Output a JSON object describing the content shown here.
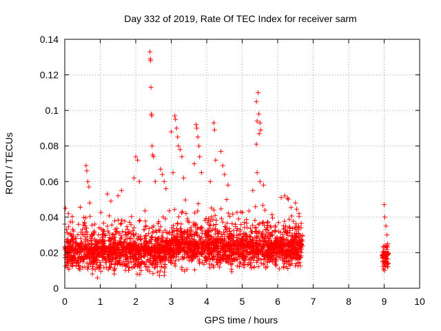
{
  "chart_data": {
    "type": "scatter",
    "title": "Day 332 of 2019, Rate Of TEC Index for receiver sarm",
    "xlabel": "GPS time / hours",
    "ylabel": "ROTI / TECUs",
    "xlim": [
      0,
      10
    ],
    "ylim": [
      0,
      0.14
    ],
    "xticks": [
      "0",
      "1",
      "2",
      "3",
      "4",
      "5",
      "6",
      "7",
      "8",
      "9",
      "10"
    ],
    "yticks": [
      "0",
      "0.02",
      "0.04",
      "0.06",
      "0.08",
      "0.1",
      "0.12",
      "0.14"
    ],
    "grid": true,
    "marker": "+",
    "color": "#ff0000",
    "series": [
      {
        "name": "ROTI",
        "points": [
          [
            0.02,
            0.045
          ],
          [
            0.03,
            0.021
          ],
          [
            0.05,
            0.033
          ],
          [
            0.08,
            0.015
          ],
          [
            0.1,
            0.042
          ],
          [
            0.6,
            0.069
          ],
          [
            0.62,
            0.066
          ],
          [
            0.65,
            0.06
          ],
          [
            0.68,
            0.057
          ],
          [
            0.7,
            0.048
          ],
          [
            1.2,
            0.053
          ],
          [
            1.3,
            0.049
          ],
          [
            1.5,
            0.052
          ],
          [
            1.6,
            0.055
          ],
          [
            1.95,
            0.062
          ],
          [
            2.0,
            0.074
          ],
          [
            2.05,
            0.072
          ],
          [
            2.1,
            0.06
          ],
          [
            2.4,
            0.133
          ],
          [
            2.41,
            0.129
          ],
          [
            2.42,
            0.128
          ],
          [
            2.43,
            0.113
          ],
          [
            2.44,
            0.098
          ],
          [
            2.45,
            0.097
          ],
          [
            2.46,
            0.08
          ],
          [
            2.48,
            0.075
          ],
          [
            2.5,
            0.074
          ],
          [
            2.55,
            0.06
          ],
          [
            2.7,
            0.067
          ],
          [
            2.75,
            0.064
          ],
          [
            2.8,
            0.06
          ],
          [
            2.85,
            0.056
          ],
          [
            3.1,
            0.097
          ],
          [
            3.12,
            0.095
          ],
          [
            3.15,
            0.09
          ],
          [
            3.18,
            0.085
          ],
          [
            3.2,
            0.08
          ],
          [
            3.25,
            0.078
          ],
          [
            3.3,
            0.074
          ],
          [
            3.35,
            0.062
          ],
          [
            3.0,
            0.088
          ],
          [
            3.05,
            0.065
          ],
          [
            3.7,
            0.092
          ],
          [
            3.72,
            0.09
          ],
          [
            3.75,
            0.085
          ],
          [
            3.78,
            0.08
          ],
          [
            3.8,
            0.074
          ],
          [
            3.85,
            0.065
          ],
          [
            3.65,
            0.07
          ],
          [
            4.2,
            0.093
          ],
          [
            4.22,
            0.089
          ],
          [
            4.25,
            0.072
          ],
          [
            4.4,
            0.077
          ],
          [
            4.45,
            0.069
          ],
          [
            4.5,
            0.064
          ],
          [
            4.1,
            0.06
          ],
          [
            4.6,
            0.058
          ],
          [
            5.4,
            0.105
          ],
          [
            5.45,
            0.11
          ],
          [
            5.42,
            0.094
          ],
          [
            5.47,
            0.098
          ],
          [
            5.5,
            0.093
          ],
          [
            5.52,
            0.089
          ],
          [
            5.48,
            0.087
          ],
          [
            5.4,
            0.081
          ],
          [
            5.42,
            0.065
          ],
          [
            5.5,
            0.06
          ],
          [
            5.6,
            0.058
          ],
          [
            5.3,
            0.055
          ],
          [
            6.1,
            0.051
          ],
          [
            6.2,
            0.052
          ],
          [
            6.3,
            0.05
          ],
          [
            6.5,
            0.048
          ],
          [
            6.6,
            0.042
          ],
          [
            9.0,
            0.047
          ],
          [
            9.02,
            0.04
          ],
          [
            9.05,
            0.035
          ],
          [
            9.08,
            0.03
          ],
          [
            9.1,
            0.025
          ],
          [
            9.03,
            0.02
          ],
          [
            9.06,
            0.015
          ],
          [
            9.01,
            0.01
          ],
          [
            9.09,
            0.012
          ],
          [
            9.04,
            0.018
          ]
        ],
        "dense_bands": [
          {
            "x_start": 0.0,
            "x_end": 2.85,
            "y_min": 0.005,
            "y_max": 0.05,
            "median": 0.022
          },
          {
            "x_start": 2.85,
            "x_end": 3.6,
            "y_min": 0.008,
            "y_max": 0.055,
            "median": 0.025
          },
          {
            "x_start": 3.6,
            "x_end": 6.7,
            "y_min": 0.008,
            "y_max": 0.055,
            "median": 0.024
          },
          {
            "x_start": 8.95,
            "x_end": 9.12,
            "y_min": 0.008,
            "y_max": 0.032,
            "median": 0.019
          }
        ]
      }
    ]
  }
}
